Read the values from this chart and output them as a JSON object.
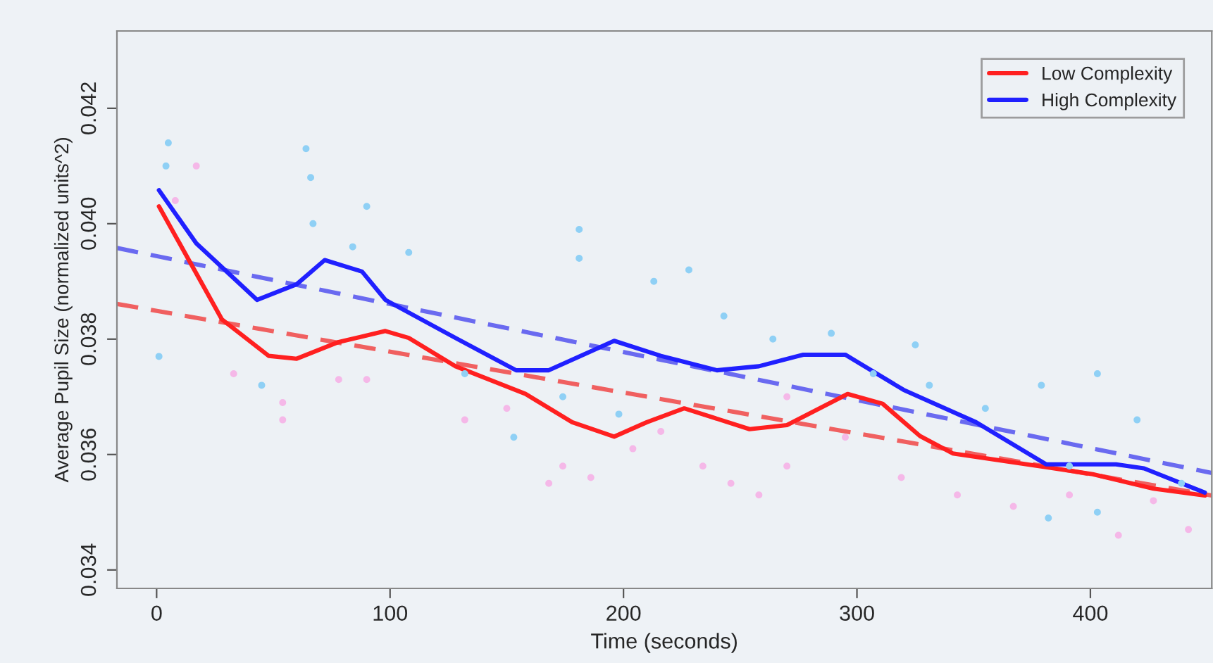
{
  "chart_data": {
    "type": "line",
    "xlabel": "Time (seconds)",
    "ylabel": "Average Pupil Size (normalized units^2)",
    "xlim": [
      -17,
      452
    ],
    "ylim": [
      0.03368,
      0.04334
    ],
    "xticks": [
      0,
      100,
      200,
      300,
      400
    ],
    "yticks": [
      {
        "value": 0.034,
        "label": "0.034"
      },
      {
        "value": 0.036,
        "label": "0.036"
      },
      {
        "value": 0.038,
        "label": "0.038"
      },
      {
        "value": 0.04,
        "label": "0.040"
      },
      {
        "value": 0.042,
        "label": "0.042"
      }
    ],
    "grid": false,
    "legend": "top right",
    "series": [
      {
        "type": "scatter",
        "color": "#8fd0f5",
        "marker": "circle",
        "x": [
          5,
          4,
          64,
          66,
          67,
          90,
          84,
          1,
          45,
          108,
          181,
          181,
          132,
          153,
          174,
          198,
          213,
          228,
          243,
          264,
          289,
          325,
          331,
          355,
          379,
          382,
          403,
          403,
          420,
          439,
          391,
          307
        ],
        "values": [
          0.0414,
          0.041,
          0.0413,
          0.0408,
          0.04,
          0.0403,
          0.0396,
          0.0377,
          0.0372,
          0.0395,
          0.0399,
          0.0394,
          0.0374,
          0.0363,
          0.037,
          0.0367,
          0.039,
          0.0392,
          0.0384,
          0.038,
          0.0381,
          0.0379,
          0.0372,
          0.0368,
          0.0372,
          0.0349,
          0.035,
          0.0374,
          0.0366,
          0.0355,
          0.0358,
          0.0374
        ]
      },
      {
        "type": "scatter",
        "color": "#f5b8e8",
        "marker": "circle",
        "x": [
          17,
          8,
          33,
          54,
          78,
          90,
          54,
          132,
          150,
          168,
          174,
          186,
          216,
          234,
          246,
          258,
          270,
          295,
          319,
          343,
          367,
          391,
          412,
          427,
          442,
          270,
          204
        ],
        "values": [
          0.041,
          0.0404,
          0.0374,
          0.0369,
          0.0373,
          0.0373,
          0.0366,
          0.0366,
          0.0368,
          0.0355,
          0.0358,
          0.0356,
          0.0364,
          0.0358,
          0.0355,
          0.0353,
          0.0358,
          0.0363,
          0.0356,
          0.0353,
          0.0351,
          0.0353,
          0.0346,
          0.0352,
          0.0347,
          0.037,
          0.0361
        ]
      },
      {
        "color": "#f06060",
        "line_style": "dashed",
        "x": [
          -17,
          452
        ],
        "values": [
          0.03861,
          0.03529
        ]
      },
      {
        "color": "#6a6af0",
        "line_style": "dashed",
        "x": [
          -17,
          452
        ],
        "values": [
          0.03958,
          0.03568
        ]
      },
      {
        "name": "Low Complexity",
        "color": "#ff2020",
        "line_style": "solid",
        "x": [
          1,
          28,
          48,
          60,
          78,
          98,
          108,
          128,
          158,
          178,
          196,
          210,
          226,
          254,
          270,
          296,
          311,
          327,
          341,
          381,
          401,
          427,
          449
        ],
        "values": [
          0.0403,
          0.03834,
          0.03771,
          0.03766,
          0.03795,
          0.03814,
          0.03802,
          0.03753,
          0.03705,
          0.03656,
          0.03631,
          0.03656,
          0.0368,
          0.03644,
          0.03651,
          0.03705,
          0.03688,
          0.03632,
          0.03602,
          0.03578,
          0.03566,
          0.03541,
          0.03529
        ]
      },
      {
        "name": "High Complexity",
        "color": "#2020ff",
        "line_style": "solid",
        "x": [
          1,
          17,
          43,
          60,
          72,
          88,
          98,
          128,
          154,
          168,
          196,
          216,
          240,
          258,
          277,
          295,
          320,
          351,
          381,
          411,
          423,
          449
        ],
        "values": [
          0.04058,
          0.03966,
          0.03868,
          0.03895,
          0.03937,
          0.03917,
          0.03868,
          0.03802,
          0.03746,
          0.03746,
          0.03797,
          0.03771,
          0.03746,
          0.03753,
          0.03773,
          0.03773,
          0.03712,
          0.03656,
          0.03583,
          0.03583,
          0.03576,
          0.03534
        ]
      }
    ]
  }
}
